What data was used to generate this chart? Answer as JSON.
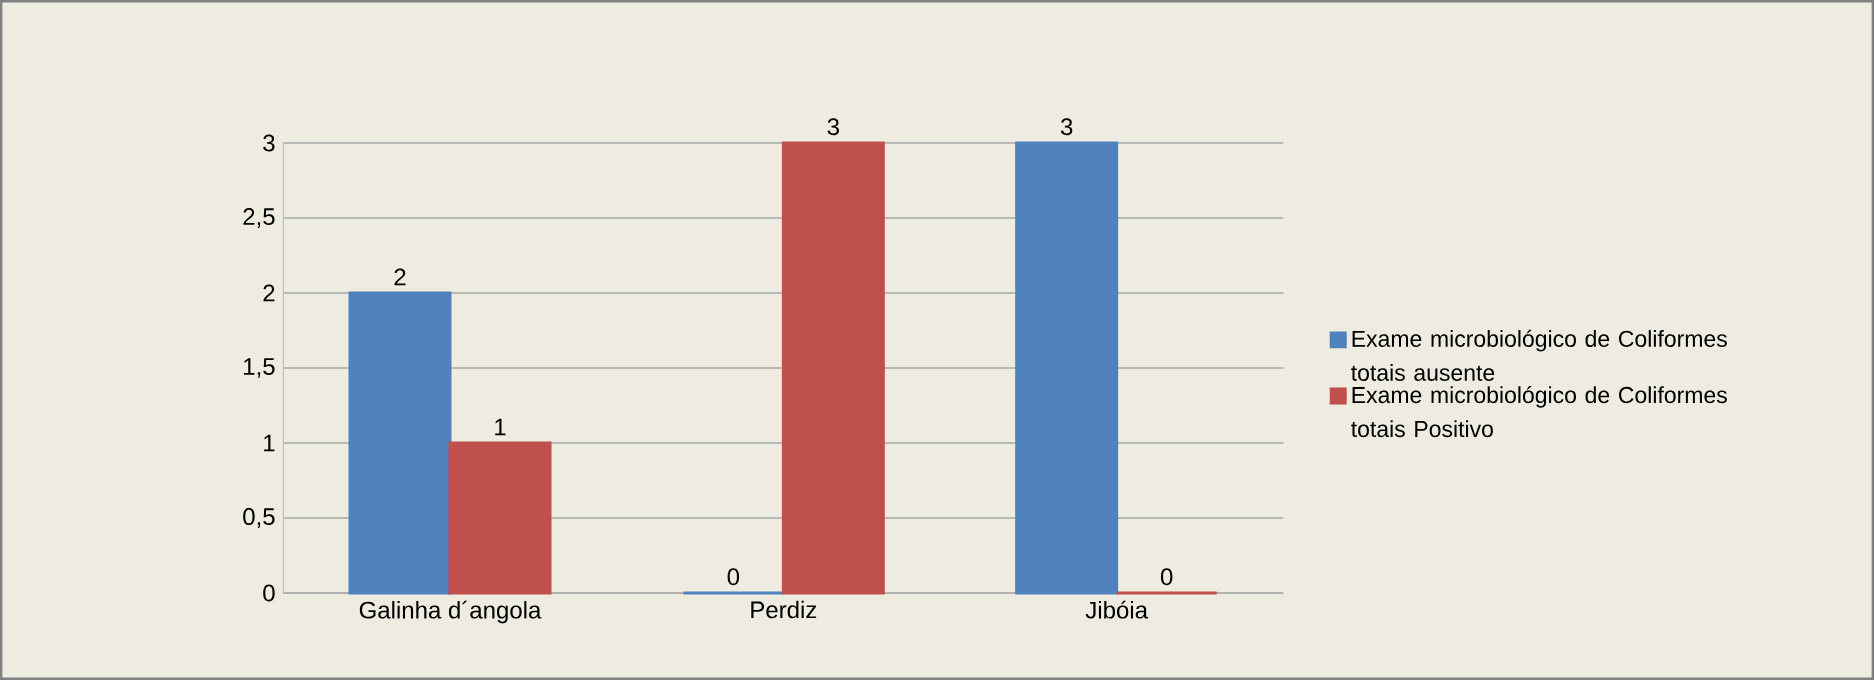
{
  "chart_data": {
    "type": "bar",
    "categories": [
      "Galinha d´angola",
      "Perdiz",
      "Jibóia"
    ],
    "series": [
      {
        "name": "Exame microbiológico de Coliformes totais ausente",
        "color": "#4f81bd",
        "values": [
          2,
          0,
          3
        ]
      },
      {
        "name": "Exame microbiológico de Coliformes totais Positivo",
        "color": "#c0504d",
        "values": [
          1,
          3,
          0
        ]
      }
    ],
    "ylim": [
      0,
      3
    ],
    "yticks": [
      0,
      {
        "value": 0.5,
        "label": "0,5"
      },
      1,
      {
        "value": 1.5,
        "label": "1,5"
      },
      2,
      {
        "value": 2.5,
        "label": "2,5"
      },
      3
    ],
    "grid": "y",
    "legend": "right",
    "data_labels": true
  }
}
